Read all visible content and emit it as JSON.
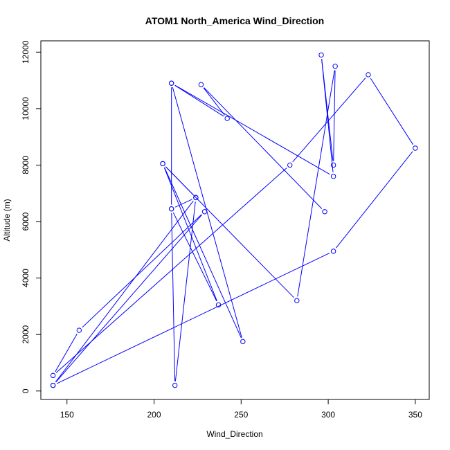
{
  "chart_data": {
    "type": "line",
    "title": "ATOM1 North_America Wind_Direction",
    "xlabel": "Wind_Direction",
    "ylabel": "Altitude (m)",
    "xlim": [
      135,
      358
    ],
    "ylim": [
      -300,
      12400
    ],
    "x_ticks": [
      150,
      200,
      250,
      300,
      350
    ],
    "y_ticks": [
      0,
      2000,
      4000,
      6000,
      8000,
      10000,
      12000
    ],
    "x_tick_labels": [
      "150",
      "200",
      "250",
      "300",
      "350"
    ],
    "y_tick_labels": [
      "0",
      "2000",
      "4000",
      "6000",
      "8000",
      "10000",
      "12000"
    ],
    "colors": {
      "series": "#0000ff",
      "axes": "#000000"
    },
    "points": [
      {
        "x": 142,
        "y": 200
      },
      {
        "x": 303,
        "y": 4950
      },
      {
        "x": 350,
        "y": 8600
      },
      {
        "x": 323,
        "y": 11200
      },
      {
        "x": 278,
        "y": 8000
      },
      {
        "x": 142,
        "y": 550
      },
      {
        "x": 157,
        "y": 2150
      },
      {
        "x": 229,
        "y": 6350
      },
      {
        "x": 142,
        "y": 200
      },
      {
        "x": 224,
        "y": 6850
      },
      {
        "x": 212,
        "y": 200
      },
      {
        "x": 210,
        "y": 6450
      },
      {
        "x": 237,
        "y": 3050
      },
      {
        "x": 205,
        "y": 8050
      },
      {
        "x": 251,
        "y": 1750
      },
      {
        "x": 210,
        "y": 10900
      },
      {
        "x": 210,
        "y": 6450
      },
      {
        "x": 224,
        "y": 6850
      },
      {
        "x": 205,
        "y": 8050
      },
      {
        "x": 282,
        "y": 3200
      },
      {
        "x": 304,
        "y": 11500
      },
      {
        "x": 303,
        "y": 8000
      },
      {
        "x": 296,
        "y": 11900
      },
      {
        "x": 303,
        "y": 7600
      },
      {
        "x": 210,
        "y": 10900
      },
      {
        "x": 242,
        "y": 9650
      },
      {
        "x": 227,
        "y": 10850
      },
      {
        "x": 298,
        "y": 6350
      }
    ]
  }
}
